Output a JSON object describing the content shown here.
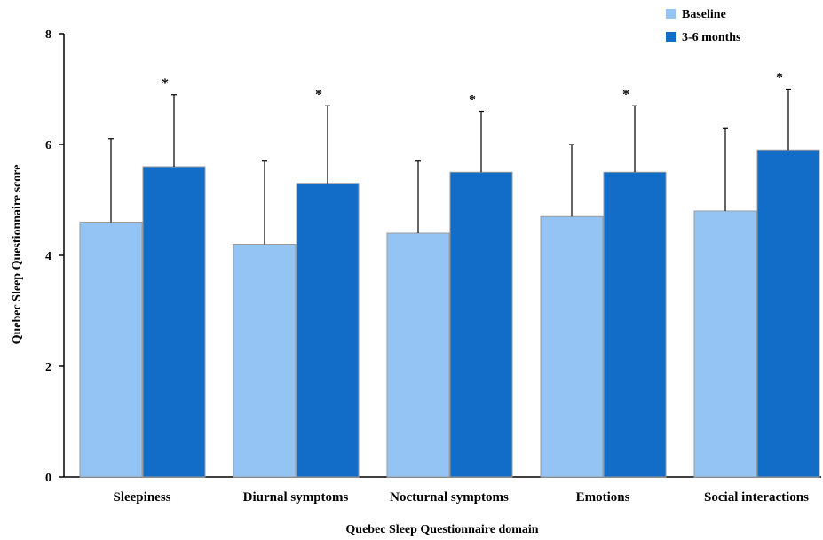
{
  "chart_data": {
    "type": "bar",
    "xlabel": "Quebec Sleep Questionnaire domain",
    "ylabel": "Quebec Sleep Questionnaire score",
    "ylim": [
      0,
      8
    ],
    "yticks": [
      0,
      2,
      4,
      6,
      8
    ],
    "grid": false,
    "legend_position": "top-right",
    "categories": [
      "Sleepiness",
      "Diurnal symptoms",
      "Nocturnal symptoms",
      "Emotions",
      "Social interactions"
    ],
    "series": [
      {
        "name": "Baseline",
        "color": "#94c4f4",
        "values": [
          4.6,
          4.2,
          4.4,
          4.7,
          4.8
        ],
        "error_upper": [
          6.1,
          5.7,
          5.7,
          6.0,
          6.3
        ]
      },
      {
        "name": "3-6 months",
        "color": "#116dc7",
        "values": [
          5.6,
          5.3,
          5.5,
          5.5,
          5.9
        ],
        "error_upper": [
          6.9,
          6.7,
          6.6,
          6.7,
          7.0
        ]
      }
    ],
    "annotations": [
      "*",
      "*",
      "*",
      "*",
      "*"
    ]
  }
}
